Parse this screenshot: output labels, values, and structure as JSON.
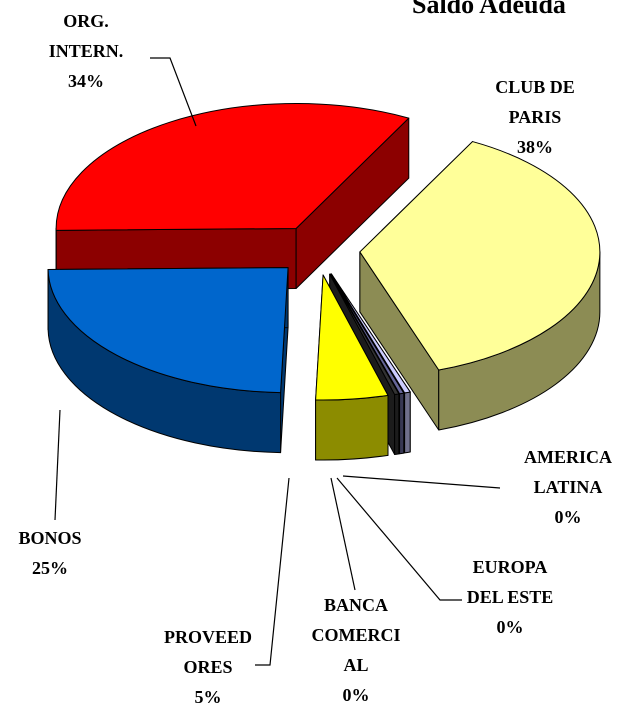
{
  "chart_data": {
    "type": "pie3d",
    "title": "Saldo Adeuda",
    "categories": [
      "CLUB DE\nPARIS",
      "AMERICA\nLATINA",
      "EUROPA\nDEL ESTE",
      "BANCA\nCOMERCI\nAL",
      "PROVEED\nORES",
      "BONOS",
      "ORG.\nINTERN."
    ],
    "values": [
      38,
      0.4,
      0.3,
      0.3,
      5,
      25,
      34
    ],
    "value_labels": [
      "38%",
      "0%",
      "0%",
      "0%",
      "5%",
      "25%",
      "34%"
    ],
    "colors": [
      "#ffff99",
      "#ccccff",
      "#666699",
      "#333333",
      "#ffff00",
      "#0066cc",
      "#ff0000"
    ]
  }
}
